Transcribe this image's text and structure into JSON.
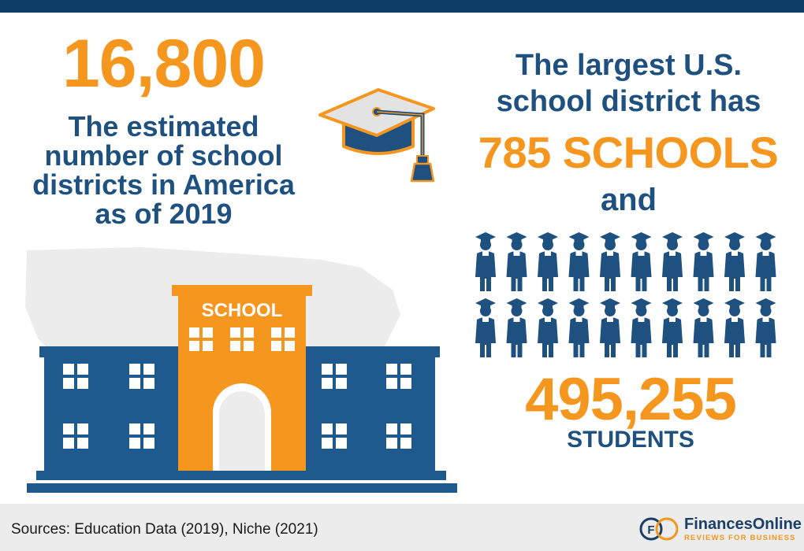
{
  "colors": {
    "navy": "#0d3c64",
    "blue": "#1e5080",
    "orange": "#f5961e",
    "footer_bg": "#ececec"
  },
  "left": {
    "number": "16,800",
    "caption_lines": [
      "The estimated",
      "number of school",
      "districts in America",
      "as of 2019"
    ]
  },
  "right": {
    "line1": "The largest U.S.",
    "line2": "school district has",
    "schools": "785 SCHOOLS",
    "connector": "and",
    "students_number": "495,255",
    "students_label": "STUDENTS"
  },
  "illustrations": {
    "graduation_cap_icon": "graduation-cap-icon",
    "graduate_icon": "graduate-icon",
    "graduate_icon_count": 20,
    "school_building": "school-building-icon",
    "map_icon": "us-map-silhouette-icon",
    "school_sign": "SCHOOL"
  },
  "footer": {
    "sources": "Sources: Education Data (2019), Niche (2021)",
    "brand_name": "FinancesOnline",
    "brand_tagline": "REVIEWS FOR BUSINESS",
    "brand_logo_icon": "financesonline-logo-icon"
  }
}
